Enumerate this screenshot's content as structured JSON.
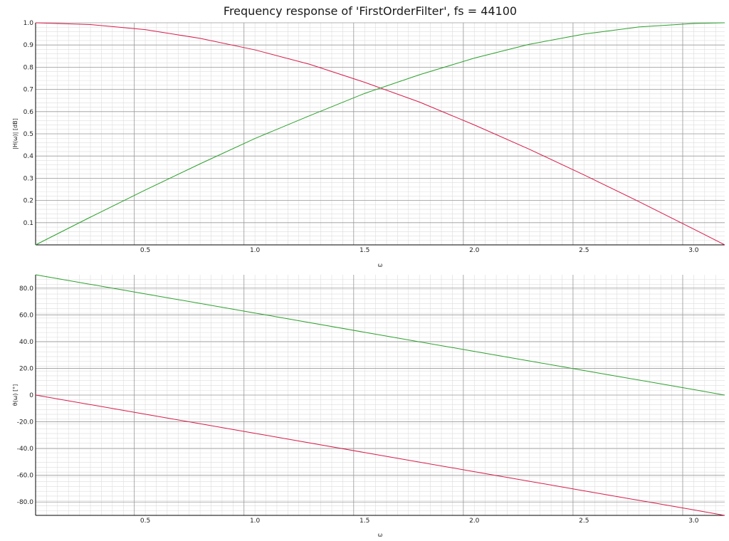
{
  "title": "Frequency response of 'FirstOrderFilter', fs = 44100",
  "colors": {
    "lowpass": "#d81b4a",
    "highpass": "#2ca02c",
    "grid_minor": "#dddddd",
    "grid_major": "#9a9a9a",
    "axis": "#000000"
  },
  "chart_data": [
    {
      "type": "line",
      "ylabel": "|H(ω)| [dB]",
      "xlabel": "ω",
      "xlim": [
        0,
        3.14159
      ],
      "ylim": [
        0,
        1.0
      ],
      "x_ticks": [
        0.5,
        1.0,
        1.5,
        2.0,
        2.5,
        3.0
      ],
      "x_tick_labels": [
        "0.5",
        "1.0",
        "1.5",
        "2.0",
        "2.5",
        "3.0"
      ],
      "y_ticks": [
        0.1,
        0.2,
        0.3,
        0.4,
        0.5,
        0.6,
        0.7,
        0.8,
        0.9,
        1.0
      ],
      "y_tick_labels": [
        "0.1",
        "0.2",
        "0.3",
        "0.4",
        "0.5",
        "0.6",
        "0.7",
        "0.8",
        "0.9",
        "1.0"
      ],
      "grid": true,
      "x": [
        0,
        0.25,
        0.5,
        0.75,
        1.0,
        1.25,
        1.5,
        1.75,
        2.0,
        2.25,
        2.5,
        2.75,
        3.0,
        3.14159
      ],
      "series": [
        {
          "values": [
            1.0,
            0.992,
            0.969,
            0.93,
            0.878,
            0.813,
            0.732,
            0.643,
            0.54,
            0.431,
            0.315,
            0.195,
            0.071,
            0.0
          ]
        },
        {
          "values": [
            0.0,
            0.125,
            0.247,
            0.365,
            0.479,
            0.582,
            0.682,
            0.766,
            0.841,
            0.903,
            0.949,
            0.981,
            0.997,
            1.0
          ]
        }
      ]
    },
    {
      "type": "line",
      "ylabel": "θ(ω) [°]",
      "xlabel": "ω",
      "xlim": [
        0,
        3.14159
      ],
      "ylim": [
        -90,
        90
      ],
      "x_ticks": [
        0.5,
        1.0,
        1.5,
        2.0,
        2.5,
        3.0
      ],
      "x_tick_labels": [
        "0.5",
        "1.0",
        "1.5",
        "2.0",
        "2.5",
        "3.0"
      ],
      "y_ticks": [
        -80,
        -60,
        -40,
        -20,
        0,
        20,
        40,
        60,
        80
      ],
      "y_tick_labels": [
        "-80.0",
        "-60.0",
        "-40.0",
        "-20.0",
        "0",
        "20.0",
        "40.0",
        "60.0",
        "80.0"
      ],
      "grid": true,
      "x": [
        0,
        0.5,
        1.0,
        1.5,
        2.0,
        2.5,
        3.0,
        3.14159
      ],
      "series": [
        {
          "values": [
            0,
            -14.3,
            -28.6,
            -43.0,
            -57.3,
            -71.6,
            -85.9,
            -90
          ]
        },
        {
          "values": [
            90,
            75.7,
            61.4,
            47.0,
            32.7,
            18.4,
            4.1,
            0
          ]
        }
      ]
    }
  ]
}
